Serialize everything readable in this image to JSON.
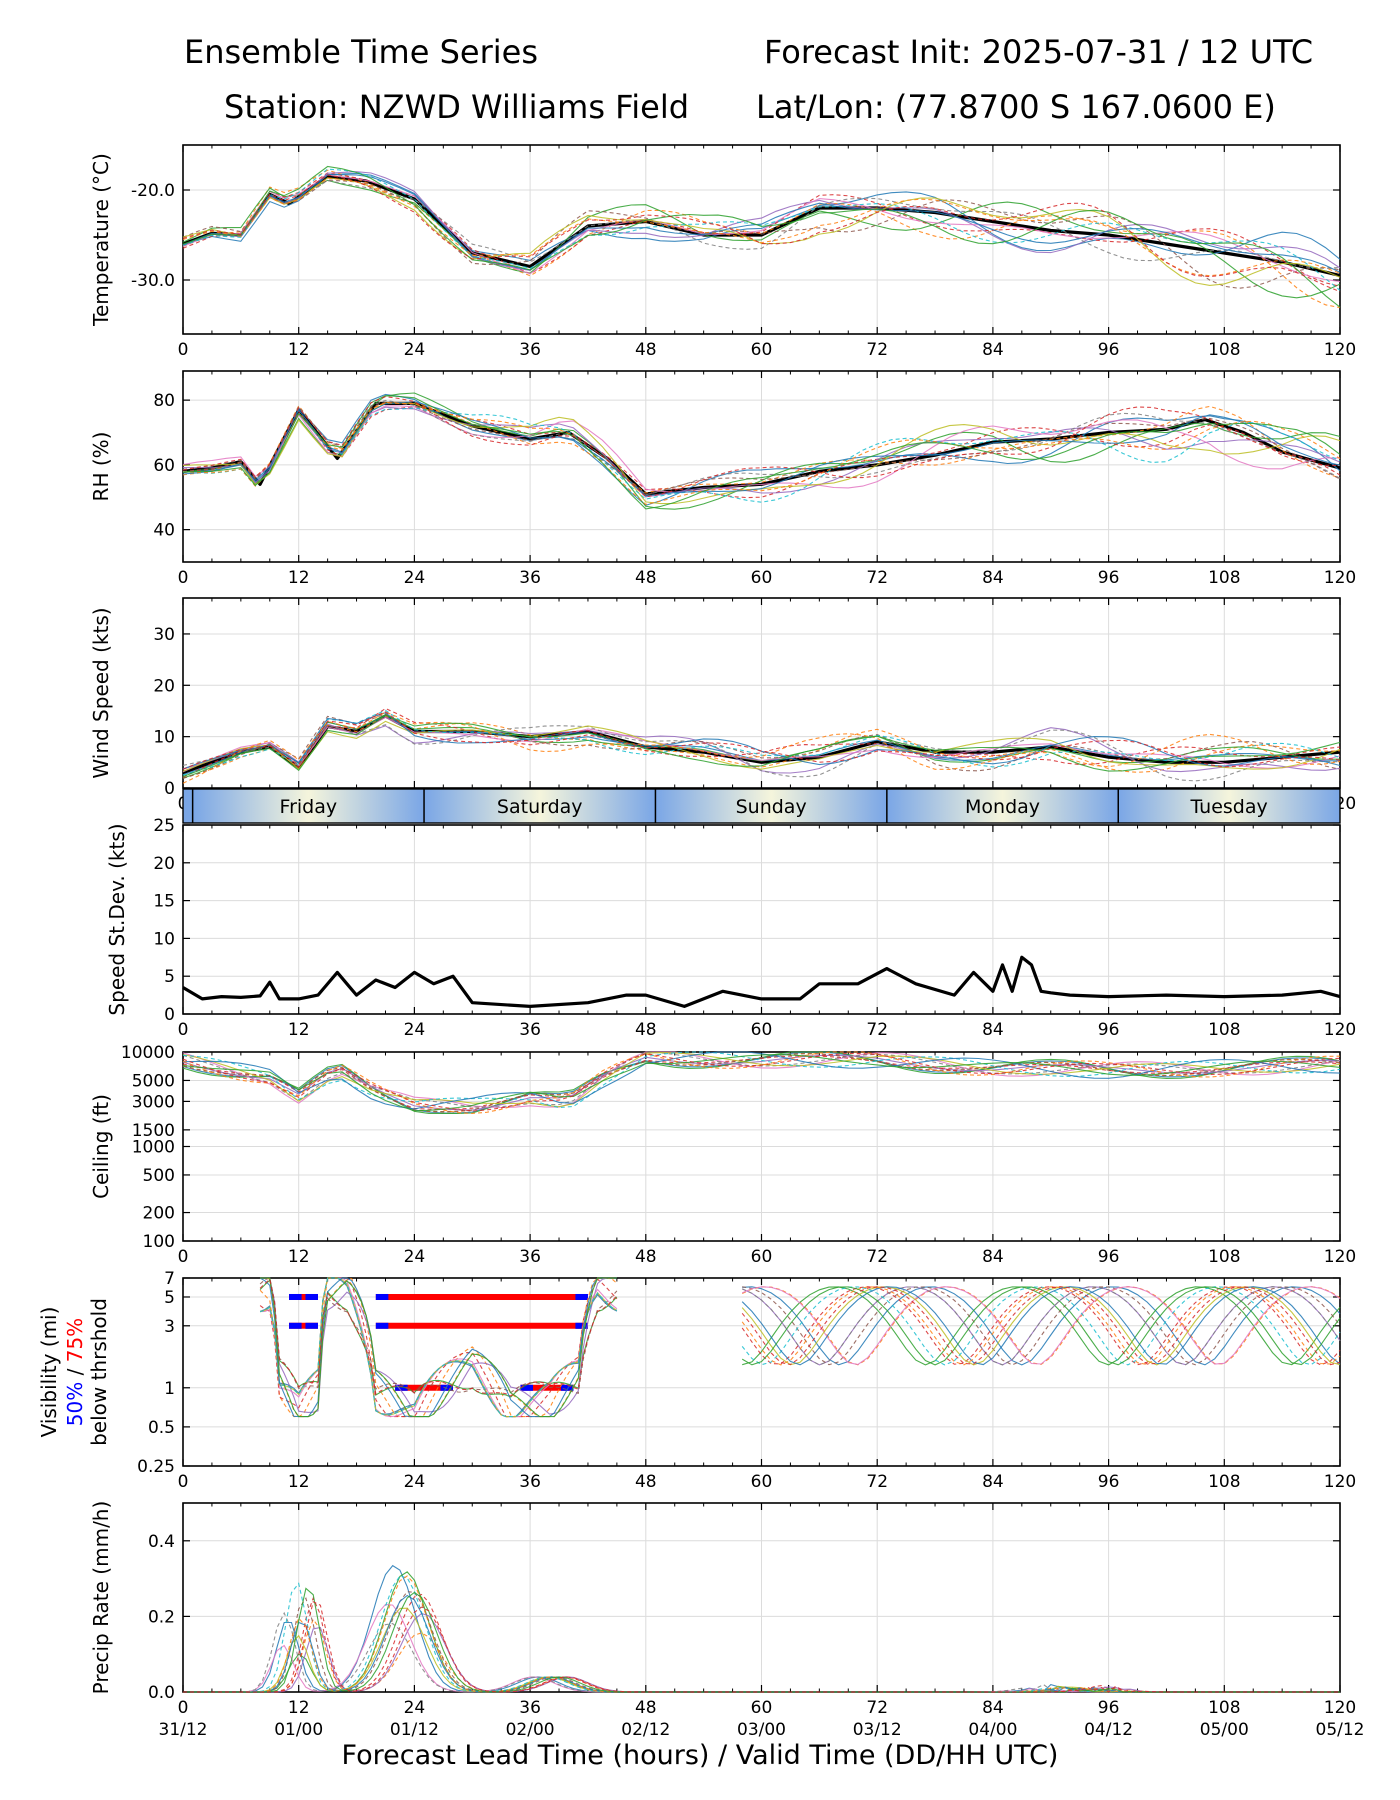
{
  "header": {
    "title": "Ensemble Time Series",
    "init": "Forecast Init: 2025-07-31 / 12 UTC",
    "station": "Station: NZWD Williams Field",
    "latlon": "Lat/Lon: (77.8700 S 167.0600 E)"
  },
  "colors": {
    "mean": "#000000",
    "spread": "#d9d9d9",
    "threshold_50": "#0000ff",
    "threshold_75": "#ff0000",
    "members": [
      "#1f77b4",
      "#ff7f0e",
      "#2ca02c",
      "#d62728",
      "#9467bd",
      "#8c564b",
      "#e377c2",
      "#7f7f7f",
      "#bcbd22",
      "#17becf"
    ]
  },
  "chart_data": [
    {
      "type": "line",
      "ylabel": "Temperature (°C)",
      "ylim": [
        -36,
        -15
      ],
      "yticks": [
        -20,
        -30
      ],
      "xlim": [
        0,
        120
      ],
      "xticks": [
        0,
        12,
        24,
        36,
        48,
        60,
        72,
        84,
        96,
        108,
        120
      ],
      "grid": true,
      "series": [
        {
          "x": [
            0,
            3,
            6,
            9,
            11,
            15,
            19,
            24,
            30,
            36,
            42,
            48,
            54,
            60,
            66,
            72,
            78,
            84,
            90,
            96,
            102,
            108,
            114,
            120
          ],
          "values": [
            -26,
            -24.8,
            -25,
            -20.5,
            -21.5,
            -18.5,
            -19,
            -21,
            -27,
            -28.5,
            -24,
            -23.5,
            -25,
            -25,
            -22,
            -22,
            -22.5,
            -23.5,
            -24.5,
            -25,
            -26,
            -27,
            -28,
            -29.5
          ]
        }
      ]
    },
    {
      "type": "line",
      "ylabel": "RH (%)",
      "ylim": [
        30,
        89
      ],
      "yticks": [
        40,
        60,
        80
      ],
      "xlim": [
        0,
        120
      ],
      "xticks": [
        0,
        12,
        24,
        36,
        48,
        60,
        72,
        84,
        96,
        108,
        120
      ],
      "grid": true,
      "series": [
        {
          "x": [
            0,
            3,
            6,
            8,
            12,
            16,
            20,
            24,
            30,
            36,
            40,
            44,
            48,
            54,
            60,
            66,
            72,
            78,
            84,
            90,
            96,
            102,
            106,
            110,
            114,
            120
          ],
          "values": [
            58,
            59,
            61,
            54,
            77,
            62,
            79,
            79,
            72,
            68,
            70,
            62,
            51,
            53,
            54,
            58,
            60,
            63,
            67,
            68,
            70,
            71,
            74,
            70,
            64,
            59
          ]
        }
      ]
    },
    {
      "type": "line",
      "ylabel": "Wind Speed (kts)",
      "ylim": [
        0,
        37
      ],
      "yticks": [
        0,
        10,
        20,
        30
      ],
      "xlim": [
        0,
        120
      ],
      "xticks": [
        0,
        12,
        24,
        36,
        48,
        60,
        72,
        84,
        96,
        108,
        120
      ],
      "grid": true,
      "series": [
        {
          "x": [
            0,
            3,
            6,
            9,
            12,
            15,
            18,
            21,
            24,
            30,
            36,
            42,
            48,
            54,
            60,
            66,
            72,
            78,
            84,
            90,
            96,
            102,
            108,
            114,
            120
          ],
          "values": [
            3,
            5,
            7,
            8,
            4,
            12,
            11,
            14,
            11,
            11,
            10,
            11,
            8,
            7,
            5,
            6,
            9,
            7,
            7,
            8,
            6,
            5,
            5,
            6,
            7
          ]
        }
      ]
    },
    {
      "type": "table",
      "days": [
        "Friday",
        "Saturday",
        "Sunday",
        "Monday",
        "Tuesday"
      ],
      "day_bounds_hours": [
        1,
        25,
        49,
        73,
        97
      ]
    },
    {
      "type": "line",
      "ylabel": "Speed St.Dev. (kts)",
      "ylim": [
        0,
        25
      ],
      "yticks": [
        0,
        5,
        10,
        15,
        20,
        25
      ],
      "xlim": [
        0,
        120
      ],
      "xticks": [
        0,
        12,
        24,
        36,
        48,
        60,
        72,
        84,
        96,
        108,
        120
      ],
      "grid": true,
      "series": [
        {
          "x": [
            0,
            2,
            4,
            6,
            8,
            9,
            10,
            12,
            14,
            16,
            17,
            18,
            20,
            22,
            24,
            26,
            28,
            30,
            36,
            42,
            46,
            48,
            52,
            56,
            60,
            64,
            66,
            70,
            73,
            76,
            80,
            82,
            84,
            85,
            86,
            87,
            88,
            89,
            90,
            92,
            96,
            102,
            108,
            114,
            118,
            120
          ],
          "values": [
            3.5,
            2,
            2.3,
            2.2,
            2.4,
            4.2,
            2,
            2,
            2.5,
            5.5,
            4,
            2.5,
            4.5,
            3.5,
            5.5,
            4,
            5,
            1.5,
            1,
            1.5,
            2.5,
            2.5,
            1,
            3,
            2,
            2,
            4,
            4,
            6,
            4,
            2.5,
            5.5,
            3,
            6.5,
            3,
            7.5,
            6.5,
            3,
            2.8,
            2.5,
            2.3,
            2.5,
            2.3,
            2.5,
            3,
            2.3
          ]
        }
      ]
    },
    {
      "type": "line",
      "ylabel": "Ceiling (ft)",
      "ylim": [
        100,
        10000
      ],
      "yscale": "log",
      "yticks": [
        100,
        200,
        500,
        1000,
        1500,
        3000,
        5000,
        10000
      ],
      "xlim": [
        0,
        120
      ],
      "xticks": [
        0,
        12,
        24,
        36,
        48,
        60,
        72,
        84,
        96,
        108,
        120
      ],
      "grid": true,
      "series": []
    },
    {
      "type": "line",
      "ylabel": "Visibility (mi)",
      "ylabel_50": "50%",
      "ylabel_slash": "/",
      "ylabel_75": "75%",
      "ylabel_line2": "below thrshold",
      "ylim": [
        0.25,
        7
      ],
      "yscale": "log",
      "yticks": [
        0.25,
        0.5,
        1,
        3,
        5,
        7
      ],
      "xlim": [
        0,
        120
      ],
      "xticks": [
        0,
        12,
        24,
        36,
        48,
        60,
        72,
        84,
        96,
        108,
        120
      ],
      "grid": true,
      "thresholds": [
        {
          "level": 5,
          "segments": [
            [
              11,
              14
            ],
            [
              20,
              42
            ]
          ]
        },
        {
          "level": 3,
          "segments": [
            [
              11,
              14
            ],
            [
              20,
              42
            ]
          ]
        },
        {
          "level": 1,
          "segments": [
            [
              22,
              28
            ],
            [
              35,
              40.5
            ]
          ]
        }
      ]
    },
    {
      "type": "line",
      "ylabel": "Precip Rate (mm/h)",
      "ylim": [
        0,
        0.5
      ],
      "yticks": [
        0.0,
        0.2,
        0.4
      ],
      "xlim": [
        0,
        120
      ],
      "xticks": [
        0,
        12,
        24,
        36,
        48,
        60,
        72,
        84,
        96,
        108,
        120
      ],
      "xticks2": [
        "31/12",
        "01/00",
        "01/12",
        "02/00",
        "02/12",
        "03/00",
        "03/12",
        "04/00",
        "04/12",
        "05/00",
        "05/12"
      ],
      "xlabel": "Forecast Lead Time (hours) / Valid Time (DD/HH UTC)",
      "grid": true,
      "series": []
    }
  ]
}
